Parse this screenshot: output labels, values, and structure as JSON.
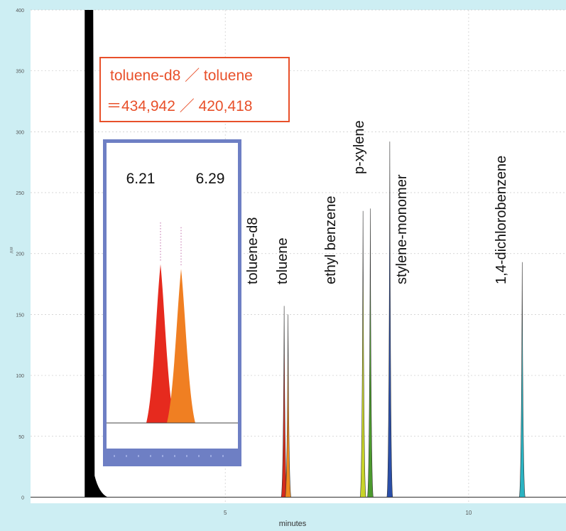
{
  "chart_data": {
    "type": "line",
    "xlabel": "minutes",
    "ylabel": "mV",
    "x_ticks": [
      5,
      10
    ],
    "y_ticks": [
      0,
      50,
      100,
      150,
      200,
      250,
      300,
      350,
      400
    ],
    "xlim": [
      1.0,
      12.0
    ],
    "ylim": [
      -5,
      400
    ],
    "grid": true,
    "baseline_color": "#444444",
    "solvent_peak": {
      "x": 2.2,
      "height": 400,
      "color": "#000000"
    },
    "peaks": [
      {
        "label": "toluene-d8",
        "x": 6.21,
        "height": 157,
        "color": "#d42a1c"
      },
      {
        "label": "toluene",
        "x": 6.29,
        "height": 150,
        "color": "#f08a1e"
      },
      {
        "label": "ethyl benzene",
        "x": 7.83,
        "height": 235,
        "color": "#c8d42a"
      },
      {
        "label": "p-xylene",
        "x": 7.98,
        "height": 237,
        "color": "#4c9a2e"
      },
      {
        "label": "stylene-monomer",
        "x": 8.38,
        "height": 292,
        "color": "#2a4ea8"
      },
      {
        "label": "1,4-dichlorobenzene",
        "x": 11.1,
        "height": 193,
        "color": "#2ab3c2"
      }
    ],
    "ratio_box": {
      "line1": "toluene-d8 ／ toluene",
      "line2": "＝434,942 ／ 420,418",
      "color": "#e8502a"
    },
    "inset": {
      "peak_labels": [
        "6.21",
        "6.29"
      ],
      "peaks": [
        {
          "rt": "6.21",
          "height": 235,
          "color": "#e62a1e"
        },
        {
          "rt": "6.29",
          "height": 228,
          "color": "#f07f22"
        }
      ],
      "frame_color": "#6e7fc4"
    }
  }
}
